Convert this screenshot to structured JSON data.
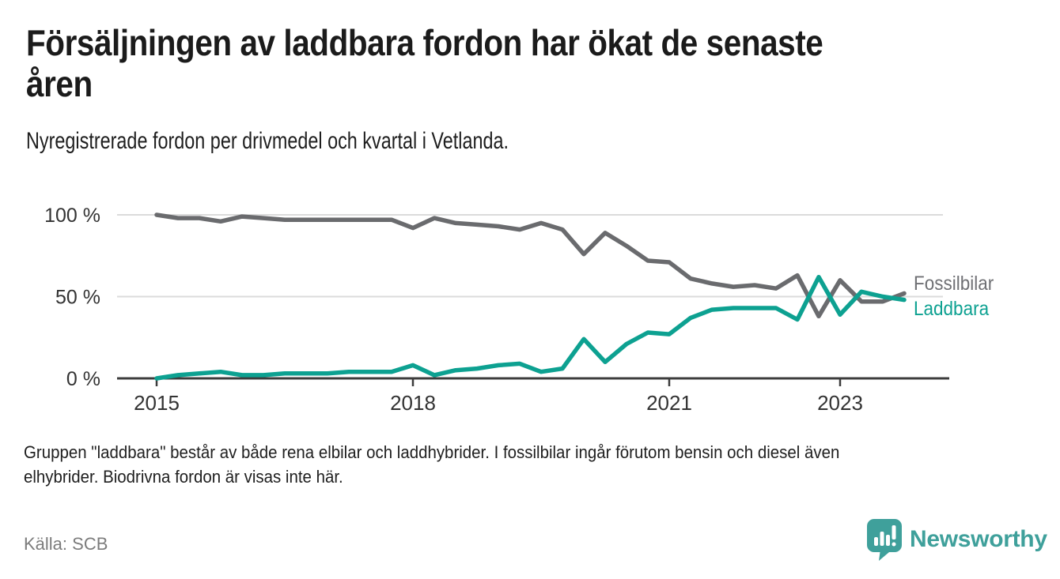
{
  "header": {
    "title": "Försäljningen av laddbara fordon har ökat de senaste åren",
    "title_lines": [
      "Försäljningen av laddbara fordon har ökat de senaste",
      "åren"
    ],
    "subtitle": "Nyregistrerade fordon per drivmedel och kvartal i Vetlanda."
  },
  "chart_data": {
    "type": "line",
    "title": "",
    "xlabel": "",
    "ylabel": "",
    "x_unit": "quarter",
    "x": [
      "2015Q1",
      "2015Q2",
      "2015Q3",
      "2015Q4",
      "2016Q1",
      "2016Q2",
      "2016Q3",
      "2016Q4",
      "2017Q1",
      "2017Q2",
      "2017Q3",
      "2017Q4",
      "2018Q1",
      "2018Q2",
      "2018Q3",
      "2018Q4",
      "2019Q1",
      "2019Q2",
      "2019Q3",
      "2019Q4",
      "2020Q1",
      "2020Q2",
      "2020Q3",
      "2020Q4",
      "2021Q1",
      "2021Q2",
      "2021Q3",
      "2021Q4",
      "2022Q1",
      "2022Q2",
      "2022Q3",
      "2022Q4",
      "2023Q1",
      "2023Q2",
      "2023Q3",
      "2023Q4"
    ],
    "series": [
      {
        "name": "Fossilbilar",
        "color": "#6A6B6E",
        "values": [
          100,
          98,
          98,
          96,
          99,
          98,
          97,
          97,
          97,
          97,
          97,
          97,
          92,
          98,
          95,
          94,
          93,
          91,
          95,
          91,
          76,
          89,
          81,
          72,
          71,
          61,
          58,
          56,
          57,
          55,
          63,
          38,
          60,
          47,
          47,
          52
        ]
      },
      {
        "name": "Laddbara",
        "color": "#0DA191",
        "values": [
          0,
          2,
          3,
          4,
          2,
          2,
          3,
          3,
          3,
          4,
          4,
          4,
          8,
          2,
          5,
          6,
          8,
          9,
          4,
          6,
          24,
          10,
          21,
          28,
          27,
          37,
          42,
          43,
          43,
          43,
          36,
          62,
          39,
          53,
          50,
          48
        ]
      }
    ],
    "ylim": [
      0,
      100
    ],
    "yticks": [
      {
        "v": 100,
        "label": "100 %"
      },
      {
        "v": 50,
        "label": "50 %"
      },
      {
        "v": 0,
        "label": "0 %"
      }
    ],
    "xticks": [
      {
        "index": 0,
        "label": "2015"
      },
      {
        "index": 12,
        "label": "2018"
      },
      {
        "index": 24,
        "label": "2021"
      },
      {
        "index": 32,
        "label": "2023"
      }
    ],
    "grid": "horizontal",
    "legend_position": "right-of-line-ends"
  },
  "footer": {
    "note": "Gruppen \"laddbara\" består av både rena elbilar och laddhybrider. I fossilbilar ingår förutom bensin och diesel även elhybrider. Biodrivna fordon är visas inte här.",
    "note_lines": [
      "Gruppen \"laddbara\" består av både rena elbilar och laddhybrider. I fossilbilar ingår förutom bensin och diesel även",
      "elhybrider. Biodrivna fordon är visas inte här."
    ],
    "source": "Källa: SCB"
  },
  "brand": {
    "name": "Newsworthy",
    "logo_icon": "bar-chart-pin-icon",
    "color": "#3FA09B"
  },
  "colors": {
    "grid": "#DBDBDB",
    "axis": "#3C3C3C",
    "tick_text": "#333333",
    "source_text": "#7C7C7C"
  }
}
